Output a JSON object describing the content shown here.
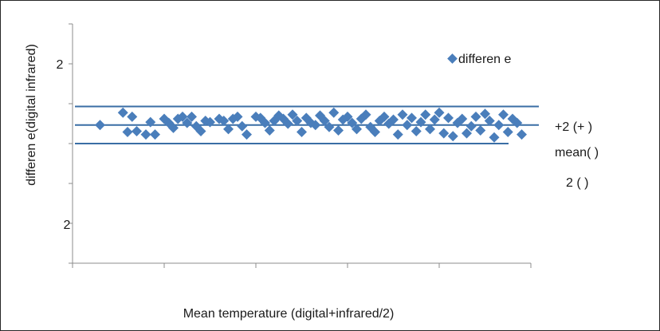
{
  "chart_data": {
    "type": "scatter",
    "title": "",
    "xlabel": "Mean temperature (digital+infrared/2)",
    "ylabel": "differen e(digital infrared)",
    "y_tick_labels": [
      "2",
      "2"
    ],
    "grid": false,
    "legend": {
      "position": "top-right",
      "entries": [
        "differen e"
      ]
    },
    "colors": {
      "marker": "#4a7ebb",
      "line": "#3a6ea5",
      "axis": "#8c8c8c"
    },
    "ylim": [
      -3.3,
      2.5
    ],
    "xlim": [
      0,
      5
    ],
    "series": [
      {
        "name": "differen e",
        "marker": "diamond",
        "points": [
          [
            0.3,
            0.05
          ],
          [
            0.55,
            0.35
          ],
          [
            0.6,
            -0.12
          ],
          [
            0.65,
            0.25
          ],
          [
            0.7,
            -0.1
          ],
          [
            0.8,
            -0.18
          ],
          [
            0.85,
            0.12
          ],
          [
            0.9,
            -0.18
          ],
          [
            1.0,
            0.2
          ],
          [
            1.05,
            0.1
          ],
          [
            1.1,
            -0.02
          ],
          [
            1.15,
            0.2
          ],
          [
            1.2,
            0.25
          ],
          [
            1.25,
            0.1
          ],
          [
            1.3,
            0.25
          ],
          [
            1.35,
            0.02
          ],
          [
            1.4,
            -0.1
          ],
          [
            1.45,
            0.15
          ],
          [
            1.5,
            0.12
          ],
          [
            1.6,
            0.2
          ],
          [
            1.65,
            0.15
          ],
          [
            1.7,
            -0.05
          ],
          [
            1.75,
            0.2
          ],
          [
            1.8,
            0.25
          ],
          [
            1.85,
            0.02
          ],
          [
            1.9,
            -0.18
          ],
          [
            2.0,
            0.25
          ],
          [
            2.05,
            0.22
          ],
          [
            2.1,
            0.1
          ],
          [
            2.15,
            -0.08
          ],
          [
            2.2,
            0.15
          ],
          [
            2.25,
            0.28
          ],
          [
            2.3,
            0.2
          ],
          [
            2.35,
            0.08
          ],
          [
            2.4,
            0.3
          ],
          [
            2.45,
            0.15
          ],
          [
            2.5,
            -0.12
          ],
          [
            2.55,
            0.22
          ],
          [
            2.6,
            0.1
          ],
          [
            2.65,
            0.05
          ],
          [
            2.7,
            0.28
          ],
          [
            2.75,
            0.15
          ],
          [
            2.8,
            0.0
          ],
          [
            2.85,
            0.35
          ],
          [
            2.9,
            -0.08
          ],
          [
            2.95,
            0.18
          ],
          [
            3.0,
            0.25
          ],
          [
            3.05,
            0.1
          ],
          [
            3.1,
            -0.05
          ],
          [
            3.15,
            0.2
          ],
          [
            3.2,
            0.3
          ],
          [
            3.25,
            0.0
          ],
          [
            3.3,
            -0.12
          ],
          [
            3.35,
            0.15
          ],
          [
            3.4,
            0.25
          ],
          [
            3.45,
            0.08
          ],
          [
            3.5,
            0.18
          ],
          [
            3.55,
            -0.18
          ],
          [
            3.6,
            0.3
          ],
          [
            3.65,
            0.05
          ],
          [
            3.7,
            0.22
          ],
          [
            3.75,
            -0.1
          ],
          [
            3.8,
            0.12
          ],
          [
            3.85,
            0.3
          ],
          [
            3.9,
            -0.05
          ],
          [
            3.95,
            0.18
          ],
          [
            4.0,
            0.35
          ],
          [
            4.05,
            -0.15
          ],
          [
            4.1,
            0.22
          ],
          [
            4.15,
            -0.22
          ],
          [
            4.2,
            0.1
          ],
          [
            4.25,
            0.2
          ],
          [
            4.3,
            -0.15
          ],
          [
            4.35,
            0.02
          ],
          [
            4.4,
            0.25
          ],
          [
            4.45,
            -0.08
          ],
          [
            4.5,
            0.32
          ],
          [
            4.55,
            0.15
          ],
          [
            4.6,
            -0.25
          ],
          [
            4.65,
            0.05
          ],
          [
            4.7,
            0.3
          ],
          [
            4.75,
            -0.12
          ],
          [
            4.8,
            0.2
          ],
          [
            4.85,
            0.1
          ],
          [
            4.9,
            -0.18
          ]
        ]
      }
    ],
    "reference_lines": [
      {
        "label": "+2 (+ )",
        "value": 0.5
      },
      {
        "label": "mean( )",
        "value": 0.05
      },
      {
        "label": "2 ( )",
        "value": -0.4
      }
    ]
  }
}
